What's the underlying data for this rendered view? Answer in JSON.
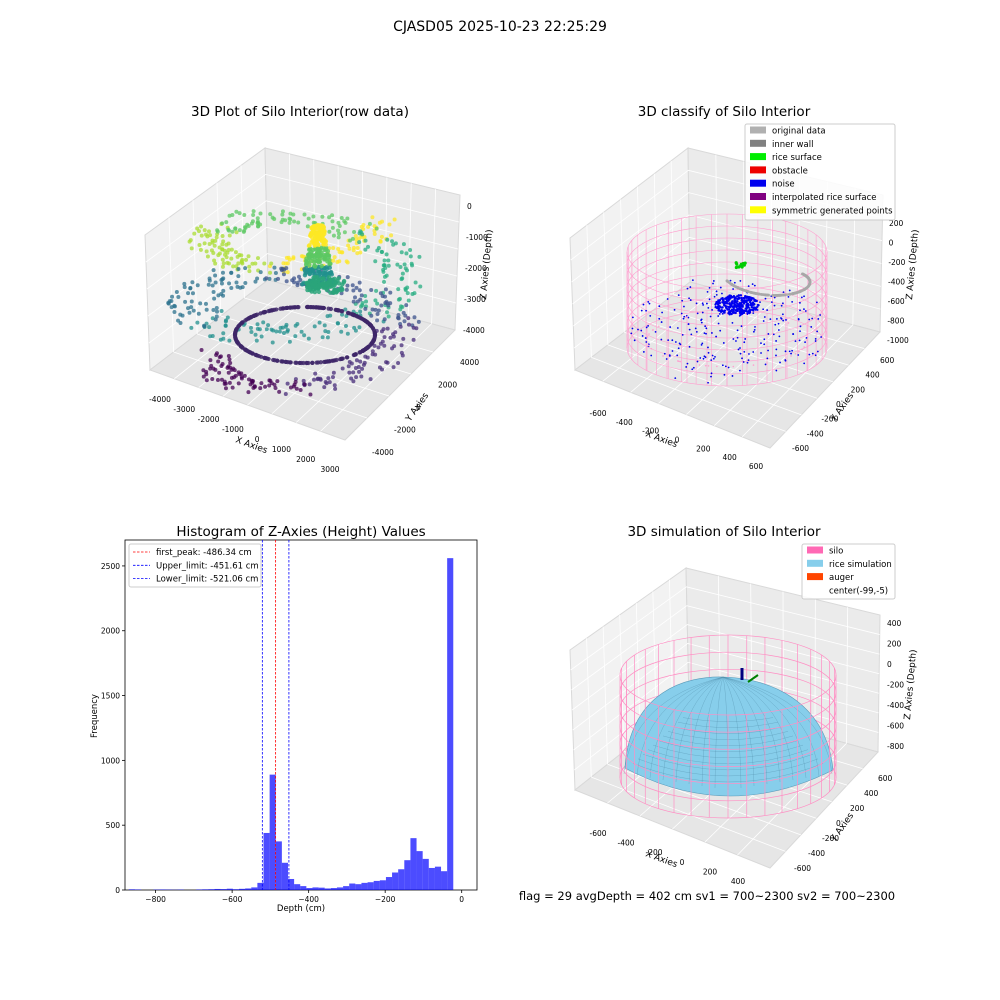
{
  "figure": {
    "suptitle": "CJASD05 2025-10-23 22:25:29",
    "footer": "flag = 29  avgDepth = 402 cm  sv1 = 700~2300  sv2 = 700~2300"
  },
  "panels": {
    "raw": {
      "title": "3D Plot of Silo Interior(row data)",
      "xlabel": "X Axies",
      "ylabel": "Y Axies",
      "zlabel": "Z Axies (Depth)",
      "xticks": [
        "-4000",
        "-3000",
        "-2000",
        "-1000",
        "0",
        "1000",
        "2000",
        "3000"
      ],
      "yticks": [
        "-4000",
        "-2000",
        "0",
        "2000",
        "4000"
      ],
      "zticks": [
        "0",
        "-1000",
        "-2000",
        "-3000",
        "-4000"
      ]
    },
    "classify": {
      "title": "3D classify of Silo Interior",
      "xlabel": "X Axies",
      "ylabel": "Y Axies",
      "zlabel": "Z Axies (Depth)",
      "xticks": [
        "-600",
        "-400",
        "-200",
        "0",
        "200",
        "400",
        "600"
      ],
      "yticks": [
        "-600",
        "-400",
        "-200",
        "0",
        "200",
        "400",
        "600"
      ],
      "zticks": [
        "200",
        "0",
        "-200",
        "-400",
        "-600",
        "-800",
        "-1000"
      ],
      "legend": [
        {
          "label": "original data",
          "color": "#b0b0b0"
        },
        {
          "label": "inner wall",
          "color": "#808080"
        },
        {
          "label": "rice surface",
          "color": "#00ee00"
        },
        {
          "label": "obstacle",
          "color": "#ee0000"
        },
        {
          "label": "noise",
          "color": "#0000ee"
        },
        {
          "label": "interpolated rice surface",
          "color": "#800080"
        },
        {
          "label": "symmetric generated points",
          "color": "#ffff00"
        }
      ]
    },
    "simulation": {
      "title": "3D simulation of Silo Interior",
      "xlabel": "X Axies",
      "ylabel": "Y Axies",
      "zlabel": "Z Axies (Depth)",
      "xticks": [
        "-600",
        "-400",
        "-200",
        "0",
        "200",
        "400"
      ],
      "yticks": [
        "-600",
        "-400",
        "-200",
        "0",
        "200",
        "400",
        "600"
      ],
      "zticks": [
        "400",
        "200",
        "0",
        "-200",
        "-400",
        "-600",
        "-800"
      ],
      "legend": [
        {
          "label": "silo",
          "color": "#ff69b4"
        },
        {
          "label": "rice simulation",
          "color": "#87ceeb"
        },
        {
          "label": "auger",
          "color": "#ff4500"
        },
        {
          "label": "center(-99,-5)",
          "color": "none"
        }
      ]
    }
  },
  "chart_data": {
    "type": "bar",
    "title": "Histogram of Z-Axies (Height) Values",
    "xlabel": "Depth (cm)",
    "ylabel": "Frequency",
    "xlim": [
      -880,
      40
    ],
    "ylim": [
      0,
      2700
    ],
    "xticks": [
      -800,
      -600,
      -400,
      -200,
      0
    ],
    "yticks": [
      0,
      500,
      1000,
      1500,
      2000,
      2500
    ],
    "bar_color": "#0000ff",
    "bin_width": 16,
    "bins": [
      [
        -870,
        5
      ],
      [
        -854,
        4
      ],
      [
        -806,
        3
      ],
      [
        -790,
        4
      ],
      [
        -774,
        3
      ],
      [
        -758,
        2
      ],
      [
        -742,
        3
      ],
      [
        -694,
        4
      ],
      [
        -678,
        5
      ],
      [
        -662,
        6
      ],
      [
        -646,
        8
      ],
      [
        -630,
        7
      ],
      [
        -614,
        10
      ],
      [
        -598,
        6
      ],
      [
        -582,
        9
      ],
      [
        -566,
        12
      ],
      [
        -550,
        20
      ],
      [
        -534,
        55
      ],
      [
        -518,
        440
      ],
      [
        -502,
        890
      ],
      [
        -486,
        375
      ],
      [
        -470,
        210
      ],
      [
        -454,
        85
      ],
      [
        -438,
        45
      ],
      [
        -422,
        30
      ],
      [
        -406,
        15
      ],
      [
        -390,
        20
      ],
      [
        -374,
        18
      ],
      [
        -358,
        12
      ],
      [
        -342,
        15
      ],
      [
        -326,
        20
      ],
      [
        -310,
        30
      ],
      [
        -294,
        50
      ],
      [
        -278,
        45
      ],
      [
        -262,
        55
      ],
      [
        -246,
        60
      ],
      [
        -230,
        70
      ],
      [
        -214,
        75
      ],
      [
        -198,
        100
      ],
      [
        -182,
        135
      ],
      [
        -166,
        160
      ],
      [
        -150,
        230
      ],
      [
        -134,
        400
      ],
      [
        -118,
        300
      ],
      [
        -102,
        240
      ],
      [
        -86,
        170
      ],
      [
        -70,
        180
      ],
      [
        -54,
        145
      ],
      [
        -38,
        2560
      ]
    ],
    "vlines": [
      {
        "x": -486.34,
        "color": "#ff0000",
        "label": "first_peak: -486.34 cm"
      },
      {
        "x": -451.61,
        "color": "#0000ff",
        "label": "Upper_limit: -451.61 cm"
      },
      {
        "x": -521.06,
        "color": "#0000ff",
        "label": "Lower_limit: -521.06 cm"
      }
    ],
    "legend_position": "upper-left"
  }
}
